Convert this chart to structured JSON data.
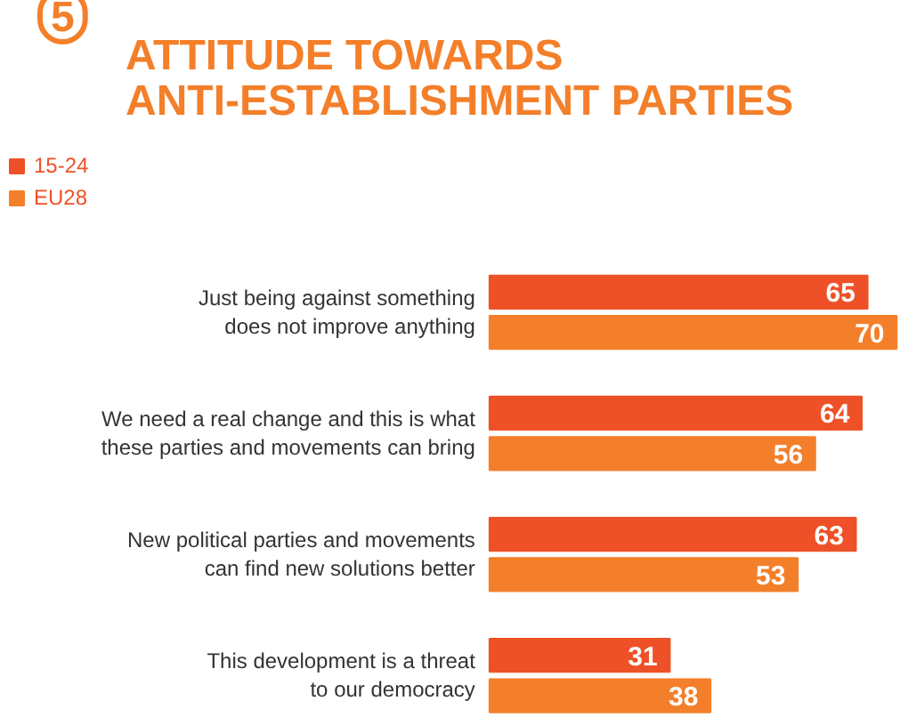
{
  "chart_data": {
    "type": "bar",
    "orientation": "horizontal",
    "tick_labels": false,
    "data_labels": true,
    "legend": "top left",
    "grid": false,
    "title": "ATTITUDE TOWARDS\nANTI-ESTABLISHMENT PARTIES",
    "annotations": [
      "5"
    ],
    "categories": [
      "Just being against something\ndoes not improve anything",
      "We need a real change and this is what\nthese parties and movements can bring",
      "New political parties and movements\ncan find new solutions better",
      "This development is a threat\nto our democracy"
    ],
    "series": [
      {
        "name": "15-24",
        "color": "#ee5127",
        "values": [
          65,
          64,
          63,
          31
        ]
      },
      {
        "name": "EU28",
        "color": "#f47f2a",
        "values": [
          70,
          56,
          53,
          38
        ]
      }
    ]
  }
}
